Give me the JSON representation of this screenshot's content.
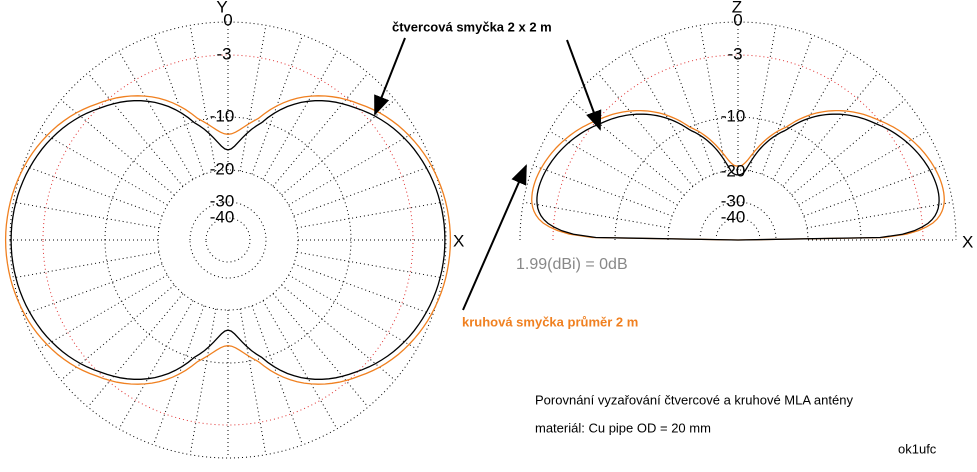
{
  "plots": [
    {
      "axis_top": "Y",
      "axis_right": "X",
      "ring_labels": [
        0,
        -3,
        -10,
        -20,
        -30,
        -40
      ]
    },
    {
      "axis_top": "Z",
      "axis_right": "X",
      "ring_labels": [
        0,
        -3,
        -10,
        -20,
        -30,
        -40
      ]
    }
  ],
  "annotations": {
    "square_loop": "čtvercová smyčka 2 x 2 m",
    "circular_loop": "kruhová smyčka průměr 2 m",
    "reference": "1.99(dBi) = 0dB",
    "caption": "Porovnání vyzařování čtvercové a kruhové MLA antény",
    "material": "materiál: Cu pipe OD = 20 mm",
    "author": "ok1ufc"
  }
}
